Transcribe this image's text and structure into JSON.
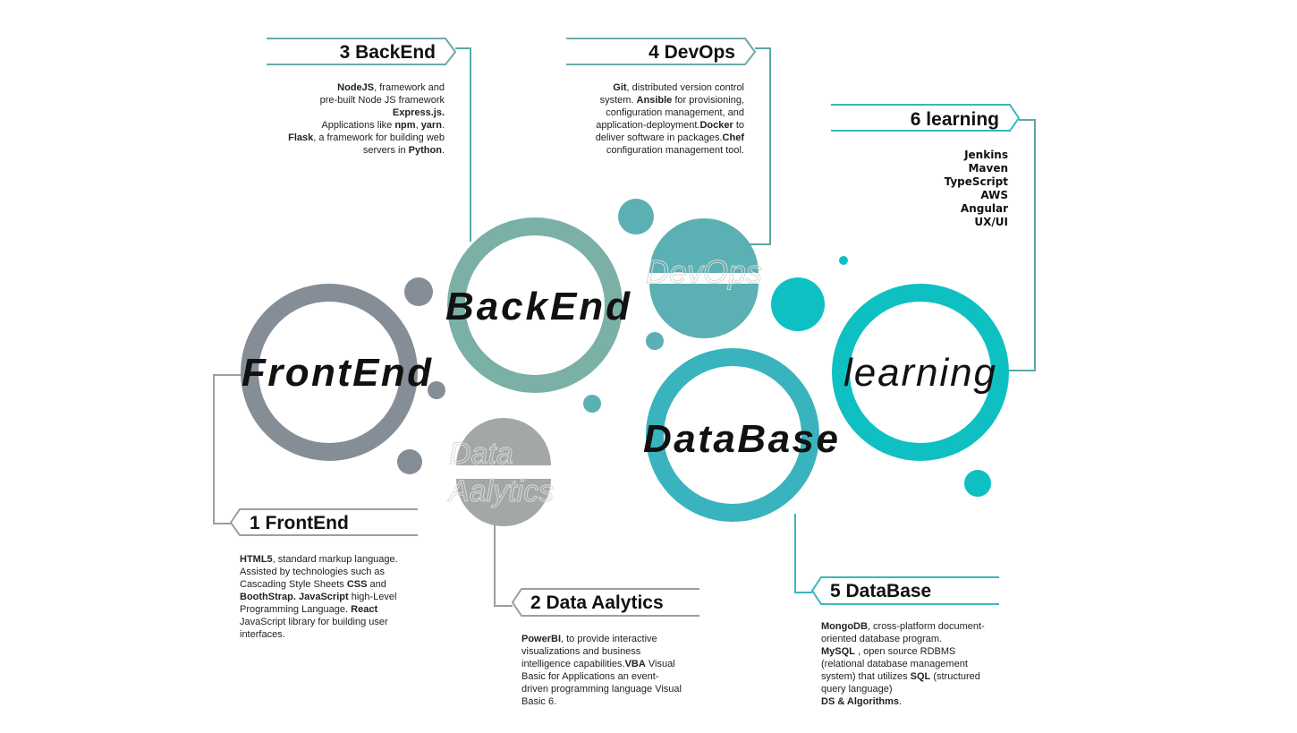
{
  "colors": {
    "frontend": "#858e96",
    "backend": "#7ab0a6",
    "devops": "#5bb0b3",
    "database": "#39b3bd",
    "learning": "#0ec0c2",
    "analytics": "#a3a7a8",
    "connector": "#5aa9a6"
  },
  "rings": {
    "frontend": "FrontEnd",
    "backend": "BackEnd",
    "devops": "DevOps",
    "analytics_line1": "Data",
    "analytics_line2": "Aalytics",
    "database": "DataBase",
    "learning": "learning"
  },
  "tags": {
    "backend": "3 BackEnd",
    "devops": "4 DevOps",
    "learning": "6 learning",
    "frontend": "1 FrontEnd",
    "analytics": "2 Data Aalytics",
    "database": "5 DataBase"
  },
  "descriptions": {
    "backend": [
      [
        {
          "t": "NodeJS",
          "b": true
        },
        {
          "t": ", framework and",
          "b": false
        }
      ],
      [
        {
          "t": "pre-built Node JS framework",
          "b": false
        }
      ],
      [
        {
          "t": "Express.js.",
          "b": true
        }
      ],
      [
        {
          "t": "Applications like ",
          "b": false
        },
        {
          "t": "npm",
          "b": true
        },
        {
          "t": ", ",
          "b": false
        },
        {
          "t": "yarn",
          "b": true
        },
        {
          "t": ".",
          "b": false
        }
      ],
      [
        {
          "t": "Flask",
          "b": true
        },
        {
          "t": ", a framework for building web",
          "b": false
        }
      ],
      [
        {
          "t": "servers in ",
          "b": false
        },
        {
          "t": "Python",
          "b": true
        },
        {
          "t": ".",
          "b": false
        }
      ]
    ],
    "devops": [
      [
        {
          "t": "Git",
          "b": true
        },
        {
          "t": ", distributed version control",
          "b": false
        }
      ],
      [
        {
          "t": "system. ",
          "b": false
        },
        {
          "t": "Ansible",
          "b": true
        },
        {
          "t": " for provisioning,",
          "b": false
        }
      ],
      [
        {
          "t": "configuration management, and",
          "b": false
        }
      ],
      [
        {
          "t": "application-deployment.",
          "b": false
        },
        {
          "t": "Docker",
          "b": true
        },
        {
          "t": " to",
          "b": false
        }
      ],
      [
        {
          "t": "deliver software in packages.",
          "b": false
        },
        {
          "t": "Chef",
          "b": true
        }
      ],
      [
        {
          "t": "configuration management tool.",
          "b": false
        }
      ]
    ],
    "frontend": [
      [
        {
          "t": "HTML5",
          "b": true
        },
        {
          "t": ", standard markup language.",
          "b": false
        }
      ],
      [
        {
          "t": "Assisted by technologies such as",
          "b": false
        }
      ],
      [
        {
          "t": "Cascading Style Sheets ",
          "b": false
        },
        {
          "t": "CSS",
          "b": true
        },
        {
          "t": " and",
          "b": false
        }
      ],
      [
        {
          "t": "BoothStrap. JavaScript",
          "b": true
        },
        {
          "t": " high-Level",
          "b": false
        }
      ],
      [
        {
          "t": "Programming Language. ",
          "b": false
        },
        {
          "t": "React",
          "b": true
        }
      ],
      [
        {
          "t": "JavaScript library for building user",
          "b": false
        }
      ],
      [
        {
          "t": "interfaces.",
          "b": false
        }
      ]
    ],
    "analytics": [
      [
        {
          "t": "PowerBI",
          "b": true
        },
        {
          "t": ", to provide interactive",
          "b": false
        }
      ],
      [
        {
          "t": "visualizations and business",
          "b": false
        }
      ],
      [
        {
          "t": "intelligence capabilities.",
          "b": false
        },
        {
          "t": "VBA",
          "b": true
        },
        {
          "t": " Visual",
          "b": false
        }
      ],
      [
        {
          "t": "Basic for Applications an event-",
          "b": false
        }
      ],
      [
        {
          "t": "driven programming language Visual",
          "b": false
        }
      ],
      [
        {
          "t": "Basic 6.",
          "b": false
        }
      ]
    ],
    "database": [
      [
        {
          "t": "MongoDB",
          "b": true
        },
        {
          "t": ", cross-platform document-",
          "b": false
        }
      ],
      [
        {
          "t": "oriented database program.",
          "b": false
        }
      ],
      [
        {
          "t": "MySQL",
          "b": true
        },
        {
          "t": " , open source RDBMS",
          "b": false
        }
      ],
      [
        {
          "t": "(relational database management",
          "b": false
        }
      ],
      [
        {
          "t": "system) that utilizes ",
          "b": false
        },
        {
          "t": "SQL",
          "b": true
        },
        {
          "t": " (structured",
          "b": false
        }
      ],
      [
        {
          "t": "query language)",
          "b": false
        }
      ],
      [
        {
          "t": "DS & Algorithms",
          "b": true
        },
        {
          "t": ".",
          "b": false
        }
      ]
    ]
  },
  "learning_list": [
    "Jenkins",
    "Maven",
    "TypeScript",
    "AWS",
    "Angular",
    "UX/UI"
  ]
}
